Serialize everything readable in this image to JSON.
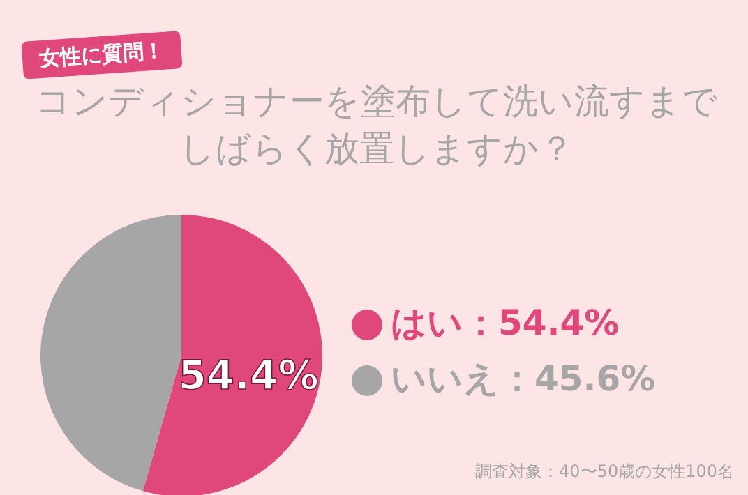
{
  "chart_data": {
    "type": "pie",
    "subtitle": "女性に質問！",
    "title": "コンディショナーを塗布して洗い流すまでしばらく放置しますか？",
    "categories": [
      "はい：54.4%",
      "いいえ：45.6%"
    ],
    "values": [
      54.4,
      45.6
    ],
    "colors": [
      "#e0477a",
      "#a6a6a6"
    ],
    "value_labels": [
      "54.4%",
      null
    ],
    "legend": "right",
    "annotations": [
      "調査対象：40〜50歳の女性100名"
    ]
  }
}
